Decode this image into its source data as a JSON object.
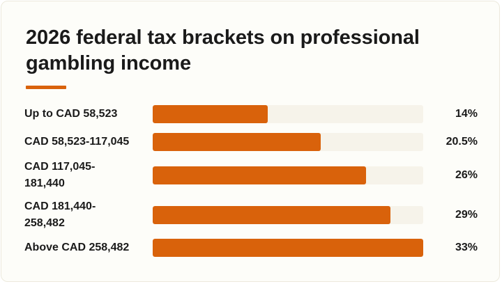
{
  "title": "2026 federal tax brackets on professional gambling income",
  "colors": {
    "accent": "#d9620b",
    "track": "#f6f3ea",
    "text": "#1a1a1a",
    "card_background": "#fdfdf9"
  },
  "chart_data": {
    "type": "bar",
    "orientation": "horizontal",
    "title": "2026 federal tax brackets on professional gambling income",
    "xlabel": "",
    "ylabel": "",
    "grid": false,
    "legend": "none",
    "xlim": [
      0,
      33
    ],
    "categories": [
      "Up to CAD 58,523",
      "CAD 58,523-117,045",
      "CAD 117,045-181,440",
      "CAD 181,440-258,482",
      "Above CAD 258,482"
    ],
    "values": [
      14,
      20.5,
      26,
      29,
      33
    ],
    "value_labels": [
      "14%",
      "20.5%",
      "26%",
      "29%",
      "33%"
    ]
  }
}
